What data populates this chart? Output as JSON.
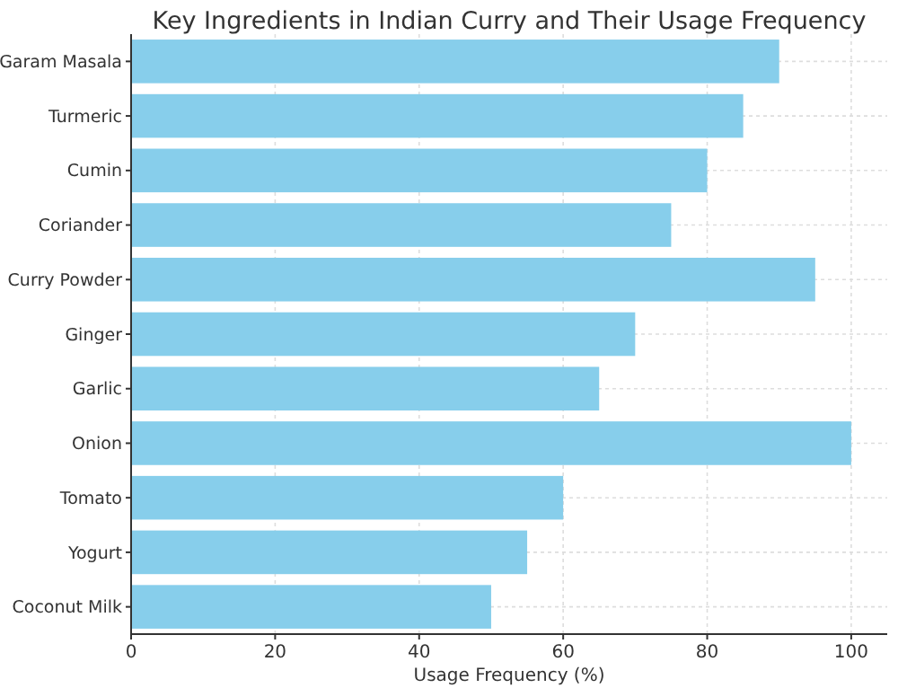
{
  "chart_data": {
    "type": "bar",
    "orientation": "horizontal",
    "title": "Key Ingredients in Indian Curry and Their Usage Frequency",
    "xlabel": "Usage Frequency (%)",
    "categories": [
      "Garam Masala",
      "Turmeric",
      "Cumin",
      "Coriander",
      "Curry Powder",
      "Ginger",
      "Garlic",
      "Onion",
      "Tomato",
      "Yogurt",
      "Coconut Milk"
    ],
    "values": [
      90,
      85,
      80,
      75,
      95,
      70,
      65,
      100,
      60,
      55,
      50
    ],
    "color": "#87ceeb",
    "xlim": [
      0,
      105
    ],
    "xticks": [
      0,
      20,
      40,
      60,
      80,
      100
    ],
    "grid": true
  }
}
